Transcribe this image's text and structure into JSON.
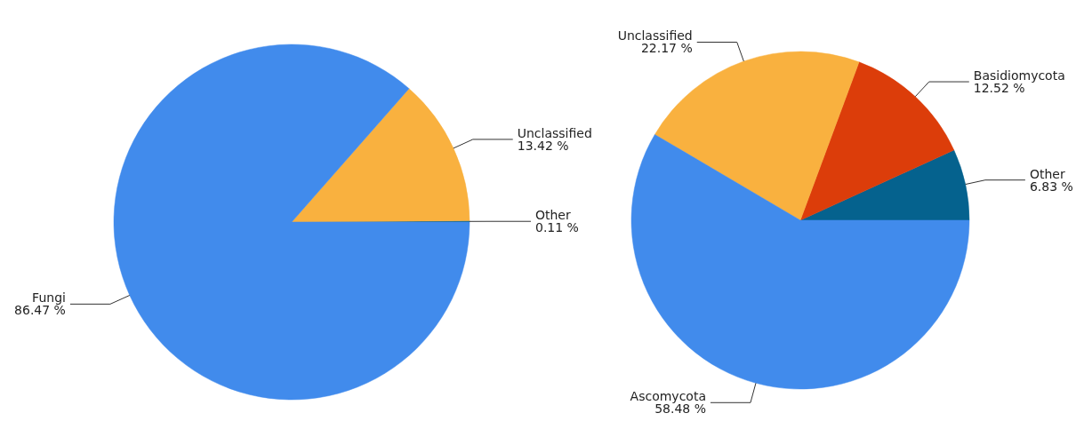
{
  "chart_data": [
    {
      "type": "pie",
      "categories": [
        "Other",
        "Unclassified",
        "Fungi"
      ],
      "values": [
        0.11,
        13.42,
        86.47
      ],
      "colors": [
        "#05628e",
        "#f9b13f",
        "#418bec"
      ],
      "value_labels": [
        "0.11 %",
        "13.42 %",
        "86.47 %"
      ]
    },
    {
      "type": "pie",
      "categories": [
        "Other",
        "Basidiomycota",
        "Unclassified",
        "Ascomycota"
      ],
      "values": [
        6.83,
        12.52,
        22.17,
        58.48
      ],
      "colors": [
        "#05628e",
        "#dc3d0a",
        "#f9b13f",
        "#418bec"
      ],
      "value_labels": [
        "6.83 %",
        "12.52 %",
        "22.17 %",
        "58.48 %"
      ]
    }
  ]
}
